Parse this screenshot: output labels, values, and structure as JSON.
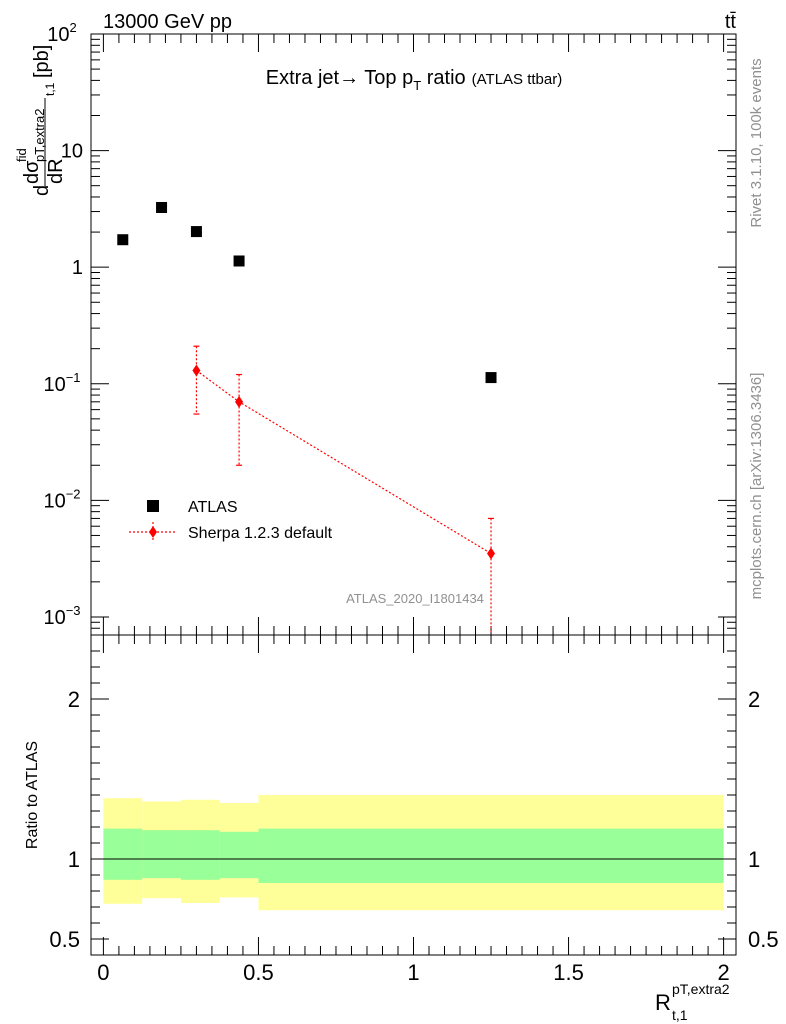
{
  "header": {
    "energy": "13000 GeV pp",
    "process": "tt̄"
  },
  "side_labels": {
    "rivet": "Rivet 3.1.10,  100k events",
    "mcplots": "mcplots.cern.ch [arXiv:1306.3436]"
  },
  "chart_data": [
    {
      "type": "scatter",
      "title_main": "Extra jet",
      "title_arrow": "→",
      "title_tail": " Top p",
      "title_sub": "T",
      "title_after": " ratio",
      "title_small": "(ATLAS ttbar)",
      "ylabel_parts": {
        "d1": "d",
        "sigma": "dσ",
        "sigma_sup": "fid",
        "sigma_sub": "pT,extra2",
        "sigma_sub2": "t,1",
        "dR": "dR",
        "unit": "[pb]"
      },
      "yscale": "log",
      "ylim": [
        0.0007,
        100
      ],
      "xlim": [
        -0.04,
        2.04
      ],
      "y_ticks": [
        {
          "value": 100,
          "base": "10",
          "exp": "2"
        },
        {
          "value": 10,
          "base": "10",
          "exp": ""
        },
        {
          "value": 1,
          "base": "1",
          "exp": ""
        },
        {
          "value": 0.1,
          "base": "10",
          "exp": "−1"
        },
        {
          "value": 0.01,
          "base": "10",
          "exp": "−2"
        },
        {
          "value": 0.001,
          "base": "10",
          "exp": "−3"
        }
      ],
      "watermark": "ATLAS_2020_I1801434",
      "legend_position": "bottom-left",
      "series": [
        {
          "name": "ATLAS",
          "color": "#000000",
          "marker": "square",
          "x": [
            0.0625,
            0.1875,
            0.3,
            0.4375,
            1.25
          ],
          "y": [
            1.72,
            3.25,
            2.02,
            1.13,
            0.113
          ]
        },
        {
          "name": "Sherpa 1.2.3 default",
          "color": "#ff0000",
          "marker": "diamond",
          "line": "dotted",
          "x": [
            0.3,
            0.4375,
            1.25
          ],
          "y": [
            0.13,
            0.07,
            0.0035
          ],
          "y_err_low": [
            0.055,
            0.02,
            0.0006
          ],
          "y_err_high": [
            0.21,
            0.12,
            0.007
          ]
        }
      ]
    },
    {
      "type": "area",
      "ylabel": "Ratio to ATLAS",
      "xlabel_main": "R",
      "xlabel_sup": "pT,extra2",
      "xlabel_sub": "t,1",
      "ylim": [
        0.4,
        2.4
      ],
      "xlim": [
        -0.04,
        2.04
      ],
      "y_ticks": [
        "0.5",
        "1",
        "2"
      ],
      "x_ticks": [
        "0",
        "0.5",
        "1",
        "1.5",
        "2"
      ],
      "reference_line": 1,
      "bands": [
        {
          "name": "stat+syst",
          "color": "#ffff99",
          "bins": [
            {
              "x0": 0.0,
              "x1": 0.125,
              "lo": 0.72,
              "hi": 1.38
            },
            {
              "x0": 0.125,
              "x1": 0.25,
              "lo": 0.755,
              "hi": 1.36
            },
            {
              "x0": 0.25,
              "x1": 0.375,
              "lo": 0.725,
              "hi": 1.37
            },
            {
              "x0": 0.375,
              "x1": 0.5,
              "lo": 0.76,
              "hi": 1.35
            },
            {
              "x0": 0.5,
              "x1": 2.0,
              "lo": 0.68,
              "hi": 1.4
            }
          ]
        },
        {
          "name": "stat",
          "color": "#99ff99",
          "bins": [
            {
              "x0": 0.0,
              "x1": 0.125,
              "lo": 0.87,
              "hi": 1.19
            },
            {
              "x0": 0.125,
              "x1": 0.25,
              "lo": 0.88,
              "hi": 1.18
            },
            {
              "x0": 0.25,
              "x1": 0.375,
              "lo": 0.87,
              "hi": 1.18
            },
            {
              "x0": 0.375,
              "x1": 0.5,
              "lo": 0.88,
              "hi": 1.17
            },
            {
              "x0": 0.5,
              "x1": 2.0,
              "lo": 0.85,
              "hi": 1.19
            }
          ]
        }
      ]
    }
  ]
}
